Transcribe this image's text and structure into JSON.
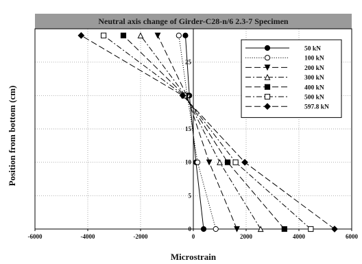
{
  "chart_data": {
    "type": "line",
    "title": "Neutral axis change of Girder-C28-n/6 2.3-7 Specimen",
    "xlabel": "Microstrain",
    "ylabel": "Position from bottom (cm)",
    "xlim": [
      -6000,
      6000
    ],
    "ylim": [
      0,
      30
    ],
    "xticks": [
      -6000,
      -4000,
      -2000,
      0,
      2000,
      4000,
      6000
    ],
    "yticks": [
      0,
      5,
      10,
      15,
      20,
      25
    ],
    "grid": true,
    "legend_position": "top-right",
    "positions": [
      0,
      10,
      20,
      29
    ],
    "series": [
      {
        "name": "50 kN",
        "marker": "filled-circle",
        "dash": "solid",
        "x": [
          390,
          100,
          -150,
          -300
        ]
      },
      {
        "name": "100 kN",
        "marker": "open-circle",
        "dash": "dotted",
        "x": [
          850,
          160,
          -230,
          -550
        ]
      },
      {
        "name": "200 kN",
        "marker": "filled-triangle-down",
        "dash": "long-dash",
        "x": [
          1650,
          600,
          -250,
          -1350
        ]
      },
      {
        "name": "300 kN",
        "marker": "open-triangle-up",
        "dash": "dash-dot",
        "x": [
          2550,
          1000,
          -300,
          -2000
        ]
      },
      {
        "name": "400 kN",
        "marker": "filled-square",
        "dash": "long-dash",
        "x": [
          3450,
          1300,
          -320,
          -2650
        ]
      },
      {
        "name": "500 kN",
        "marker": "open-square",
        "dash": "dash-dot",
        "x": [
          4450,
          1600,
          -350,
          -3400
        ]
      },
      {
        "name": "597.8 kN",
        "marker": "filled-diamond",
        "dash": "long-dash",
        "x": [
          5350,
          1950,
          -400,
          -4250
        ]
      }
    ]
  }
}
